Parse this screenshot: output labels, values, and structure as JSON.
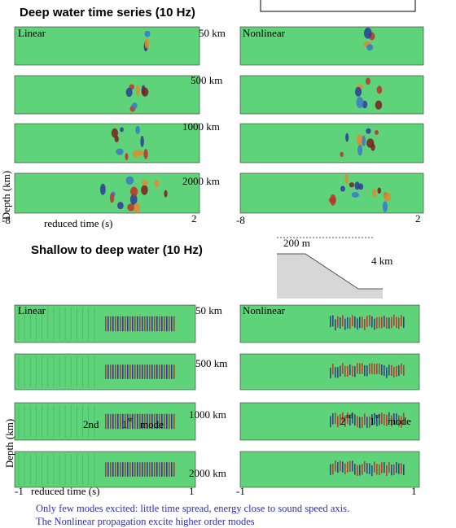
{
  "top": {
    "title": "Deep water time series (10 Hz)",
    "left_label": "Linear",
    "right_label": "Nonlinear",
    "ranges": [
      "50 km",
      "500 km",
      "1000 km",
      "2000 km"
    ],
    "y_label": "Depth (km)",
    "left_x_start": "-8",
    "left_x_end": "2",
    "x_label": "reduced time (s)",
    "right_x_start": "-8",
    "right_x_end": "2"
  },
  "bottom": {
    "title": "Shallow to deep water (10 Hz)",
    "shelf_depth": "200 m",
    "deep_depth": "4 km",
    "left_label": "Linear",
    "right_label": "Nonlinear",
    "ranges": [
      "50 km",
      "500 km",
      "1000 km",
      "2000 km"
    ],
    "left_annotation": {
      "second": "2nd",
      "first": "1",
      "first_sup": "st",
      "mode": "mode"
    },
    "right_annotation": {
      "second": "2",
      "second_sup": "nd",
      "first": "1",
      "first_sup": "st",
      "mode": "mode"
    },
    "y_label": "Depth (km)",
    "left_x_start": "-1",
    "x_label": "reduced time (s)",
    "left_x_end": "1",
    "right_x_start": "-1",
    "right_x_end": "1"
  },
  "caption": [
    "Only few modes excited: little time spread, energy close to sound speed axis.",
    "The Nonlinear propagation excite higher order modes"
  ]
}
